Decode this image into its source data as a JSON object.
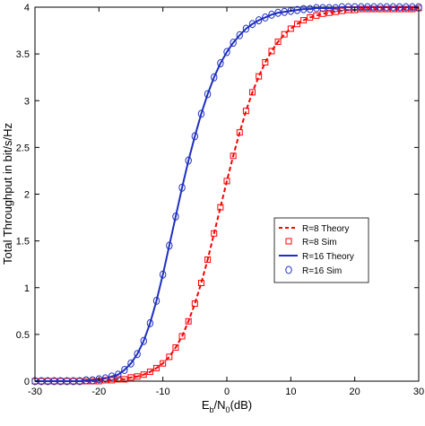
{
  "chart_data": {
    "type": "line",
    "xlabel_main": "E",
    "xlabel_sub1": "b",
    "xlabel_mid": "/N",
    "xlabel_sub2": "0",
    "xlabel_end": "(dB)",
    "ylabel": "Total Throughput in bit/s/Hz",
    "xlim": [
      -30,
      30
    ],
    "ylim": [
      0,
      4
    ],
    "x_ticks": [
      -30,
      -20,
      -10,
      0,
      10,
      20,
      30
    ],
    "y_ticks": [
      0,
      0.5,
      1,
      1.5,
      2,
      2.5,
      3,
      3.5,
      4
    ],
    "x_tick_labels": [
      "-30",
      "-20",
      "-10",
      "0",
      "10",
      "20",
      "30"
    ],
    "y_tick_labels": [
      "0",
      "0.5",
      "1",
      "1.5",
      "2",
      "2.5",
      "3",
      "3.5",
      "4"
    ],
    "grid": false,
    "legend_position": "center-right",
    "x": [
      -30,
      -29,
      -28,
      -27,
      -26,
      -25,
      -24,
      -23,
      -22,
      -21,
      -20,
      -19,
      -18,
      -17,
      -16,
      -15,
      -14,
      -13,
      -12,
      -11,
      -10,
      -9,
      -8,
      -7,
      -6,
      -5,
      -4,
      -3,
      -2,
      -1,
      0,
      1,
      2,
      3,
      4,
      5,
      6,
      7,
      8,
      9,
      10,
      11,
      12,
      13,
      14,
      15,
      16,
      17,
      18,
      19,
      20,
      21,
      22,
      23,
      24,
      25,
      26,
      27,
      28,
      29,
      30
    ],
    "series": [
      {
        "name": "R=8 Theory",
        "color": "#ff0000",
        "style": "dashed",
        "values": [
          0.0,
          0.0,
          0.0,
          0.0,
          0.0,
          0.0,
          0.0,
          0.0,
          0.0,
          0.0,
          0.0,
          0.01,
          0.01,
          0.02,
          0.02,
          0.04,
          0.05,
          0.07,
          0.1,
          0.14,
          0.19,
          0.26,
          0.36,
          0.48,
          0.64,
          0.83,
          1.05,
          1.3,
          1.58,
          1.86,
          2.14,
          2.41,
          2.66,
          2.89,
          3.09,
          3.26,
          3.41,
          3.53,
          3.63,
          3.71,
          3.77,
          3.82,
          3.86,
          3.89,
          3.91,
          3.93,
          3.94,
          3.95,
          3.96,
          3.97,
          3.97,
          3.98,
          3.98,
          3.98,
          3.98,
          3.98,
          3.98,
          3.98,
          3.98,
          3.98,
          3.99
        ]
      },
      {
        "name": "R=8 Sim",
        "color": "#ff0000",
        "marker": "square",
        "values": [
          0.0,
          0.0,
          0.0,
          0.0,
          0.0,
          0.0,
          0.0,
          0.0,
          0.0,
          0.0,
          0.0,
          0.01,
          0.01,
          0.02,
          0.02,
          0.04,
          0.05,
          0.07,
          0.1,
          0.14,
          0.19,
          0.26,
          0.36,
          0.48,
          0.64,
          0.83,
          1.05,
          1.3,
          1.58,
          1.86,
          2.14,
          2.41,
          2.66,
          2.89,
          3.09,
          3.26,
          3.41,
          3.53,
          3.63,
          3.71,
          3.77,
          3.82,
          3.86,
          3.89,
          3.91,
          3.93,
          3.94,
          3.95,
          3.96,
          3.97,
          3.97,
          3.98,
          3.98,
          3.98,
          3.98,
          3.98,
          3.98,
          3.98,
          3.98,
          3.98,
          3.99
        ]
      },
      {
        "name": "R=16 Theory",
        "color": "#1f2fbf",
        "style": "solid",
        "values": [
          0.0,
          0.0,
          0.0,
          0.0,
          0.0,
          0.0,
          0.0,
          0.0,
          0.01,
          0.01,
          0.02,
          0.03,
          0.05,
          0.07,
          0.12,
          0.19,
          0.29,
          0.43,
          0.62,
          0.86,
          1.14,
          1.45,
          1.76,
          2.07,
          2.36,
          2.62,
          2.86,
          3.07,
          3.25,
          3.4,
          3.52,
          3.62,
          3.7,
          3.77,
          3.82,
          3.86,
          3.89,
          3.92,
          3.94,
          3.95,
          3.96,
          3.97,
          3.98,
          3.98,
          3.99,
          3.99,
          3.99,
          3.99,
          4.0,
          4.0,
          4.0,
          4.0,
          4.0,
          4.0,
          4.0,
          4.0,
          4.0,
          4.0,
          4.0,
          4.0,
          4.0
        ]
      },
      {
        "name": "R=16 Sim",
        "color": "#1f2fbf",
        "marker": "circle",
        "values": [
          0.0,
          0.0,
          0.0,
          0.0,
          0.0,
          0.0,
          0.0,
          0.0,
          0.01,
          0.01,
          0.02,
          0.03,
          0.05,
          0.07,
          0.12,
          0.19,
          0.29,
          0.43,
          0.62,
          0.86,
          1.14,
          1.45,
          1.76,
          2.07,
          2.36,
          2.62,
          2.86,
          3.07,
          3.25,
          3.4,
          3.52,
          3.62,
          3.7,
          3.77,
          3.82,
          3.86,
          3.89,
          3.92,
          3.94,
          3.95,
          3.96,
          3.97,
          3.98,
          3.98,
          3.99,
          3.99,
          3.99,
          3.99,
          4.0,
          4.0,
          4.0,
          4.0,
          4.0,
          4.0,
          4.0,
          4.0,
          4.0,
          4.0,
          4.0,
          4.0,
          4.0
        ]
      }
    ]
  }
}
